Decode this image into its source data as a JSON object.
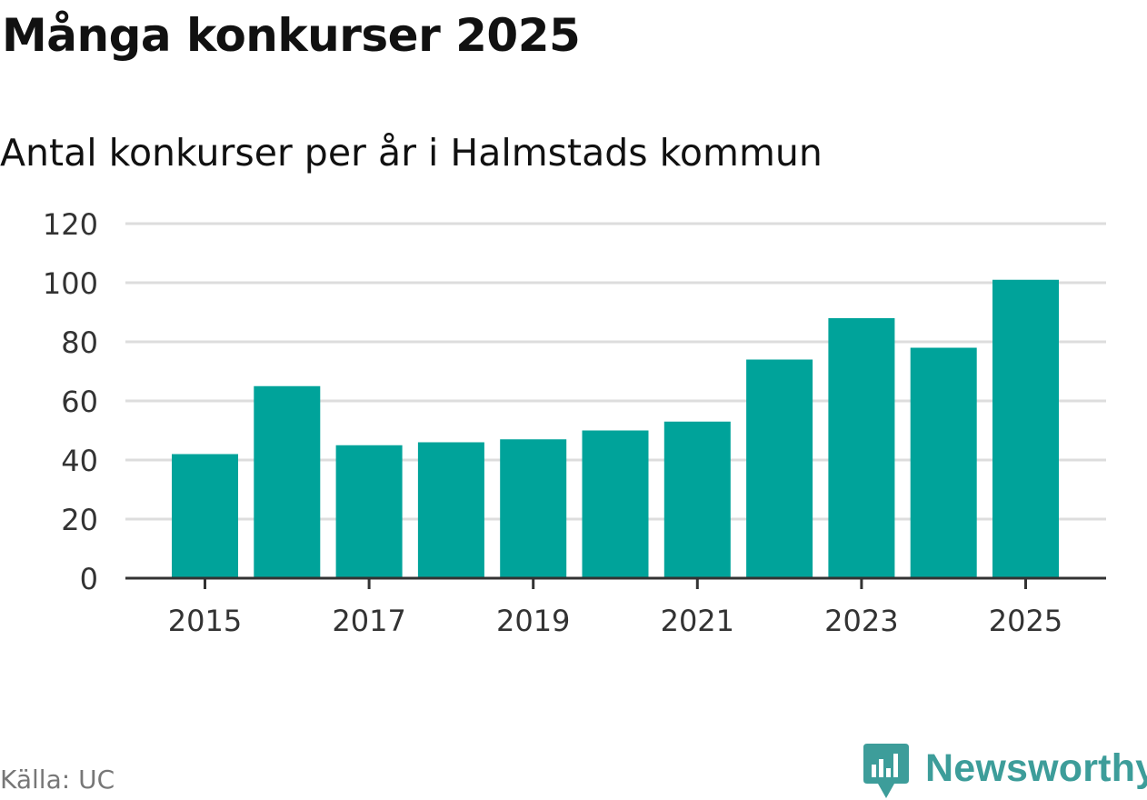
{
  "title": "Många konkurser 2025",
  "subtitle": "Antal konkurser per år i Halmstads kommun",
  "source": "Källa: UC",
  "brand": {
    "name": "Newsworthy",
    "icon": "newsworthy-logo-icon",
    "color": "#3d9d9a"
  },
  "chart_data": {
    "type": "bar",
    "categories": [
      "2015",
      "2016",
      "2017",
      "2018",
      "2019",
      "2020",
      "2021",
      "2022",
      "2023",
      "2024",
      "2025"
    ],
    "values": [
      42,
      65,
      45,
      46,
      47,
      50,
      53,
      74,
      88,
      78,
      101
    ],
    "x_tick_labels": [
      "2015",
      "2017",
      "2019",
      "2021",
      "2023",
      "2025"
    ],
    "y_ticks": [
      0,
      20,
      40,
      60,
      80,
      100,
      120
    ],
    "ylim": [
      0,
      120
    ],
    "grid": true,
    "bar_color": "#00a39a",
    "grid_color": "#dddddd",
    "axis_color": "#333333",
    "xlabel": "",
    "ylabel": ""
  }
}
